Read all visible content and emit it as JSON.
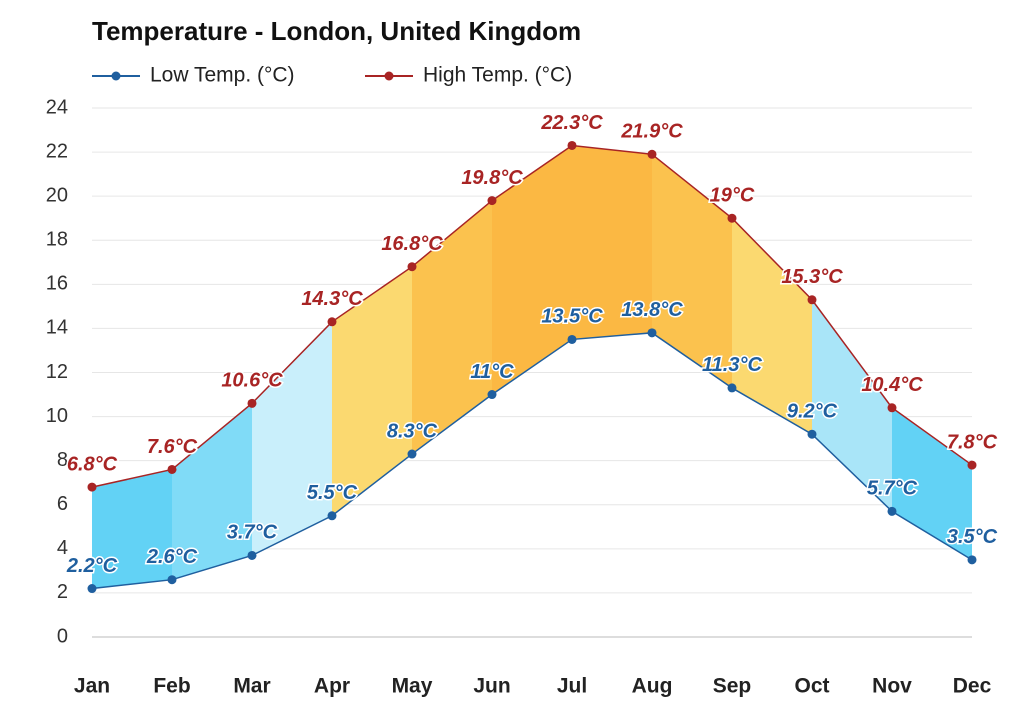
{
  "chart_data": {
    "type": "range-line",
    "title": "Temperature - London, United Kingdom",
    "categories": [
      "Jan",
      "Feb",
      "Mar",
      "Apr",
      "May",
      "Jun",
      "Jul",
      "Aug",
      "Sep",
      "Oct",
      "Nov",
      "Dec"
    ],
    "series": [
      {
        "name": "Low Temp. (°C)",
        "color": "#1f5f9f",
        "values": [
          2.2,
          2.6,
          3.7,
          5.5,
          8.3,
          11,
          13.5,
          13.8,
          11.3,
          9.2,
          5.7,
          3.5
        ],
        "value_labels": [
          "2.2°C",
          "2.6°C",
          "3.7°C",
          "5.5°C",
          "8.3°C",
          "11°C",
          "13.5°C",
          "13.8°C",
          "11.3°C",
          "9.2°C",
          "5.7°C",
          "3.5°C"
        ]
      },
      {
        "name": "High Temp. (°C)",
        "color": "#a82424",
        "values": [
          6.8,
          7.6,
          10.6,
          14.3,
          16.8,
          19.8,
          22.3,
          21.9,
          19,
          15.3,
          10.4,
          7.8
        ],
        "value_labels": [
          "6.8°C",
          "7.6°C",
          "10.6°C",
          "14.3°C",
          "16.8°C",
          "19.8°C",
          "22.3°C",
          "21.9°C",
          "19°C",
          "15.3°C",
          "10.4°C",
          "7.8°C"
        ]
      }
    ],
    "band_colors": [
      "#62d2f5",
      "#80dbf7",
      "#c9effb",
      "#fbd970",
      "#fbc24e",
      "#fbb843",
      "#fbb843",
      "#fbc24e",
      "#fbd970",
      "#a9e5f8",
      "#62d2f5"
    ],
    "ylim": [
      0,
      24
    ],
    "yticks": [
      0,
      2,
      4,
      6,
      8,
      10,
      12,
      14,
      16,
      18,
      20,
      22,
      24
    ],
    "grid": true
  }
}
